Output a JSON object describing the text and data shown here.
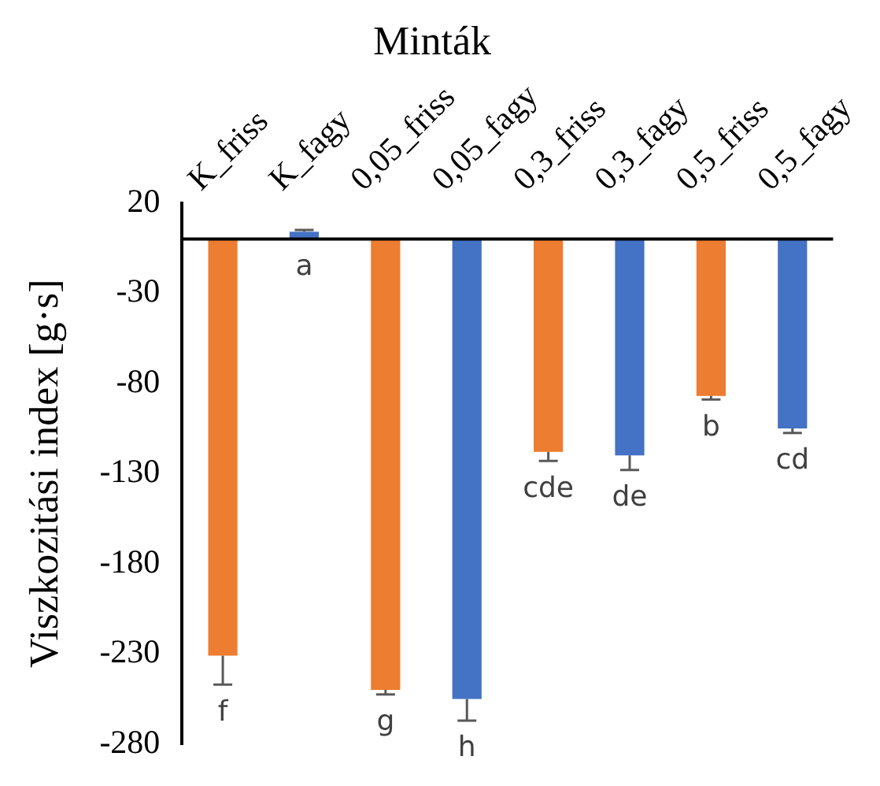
{
  "chart_data": {
    "type": "bar",
    "title": "Minták",
    "ylabel": "Viszkozitási index [g·s]",
    "categories": [
      "K_friss",
      "K_fagy",
      "0,05_friss",
      "0,05_fagy",
      "0,3_friss",
      "0,3_fagy",
      "0,5_friss",
      "0,5_fagy"
    ],
    "values": [
      -231,
      4,
      -250,
      -255,
      -118,
      -120,
      -87,
      -105
    ],
    "colors": [
      "#ed7d31",
      "#4472c4",
      "#ed7d31",
      "#4472c4",
      "#ed7d31",
      "#4472c4",
      "#ed7d31",
      "#4472c4"
    ],
    "errors": [
      [
        -247,
        -231
      ],
      [
        4,
        5
      ],
      [
        -252.5,
        -250
      ],
      [
        -267,
        -255
      ],
      [
        -123,
        -118
      ],
      [
        -128,
        -120
      ],
      [
        -89,
        -87
      ],
      [
        -107.5,
        -105
      ]
    ],
    "ylim": [
      -280,
      20
    ],
    "yticks": [
      20,
      -30,
      -80,
      -130,
      -180,
      -230,
      -280
    ],
    "grid": false,
    "annotations": [
      "f",
      "a",
      "g",
      "h",
      "cde",
      "de",
      "b",
      "cd"
    ]
  }
}
